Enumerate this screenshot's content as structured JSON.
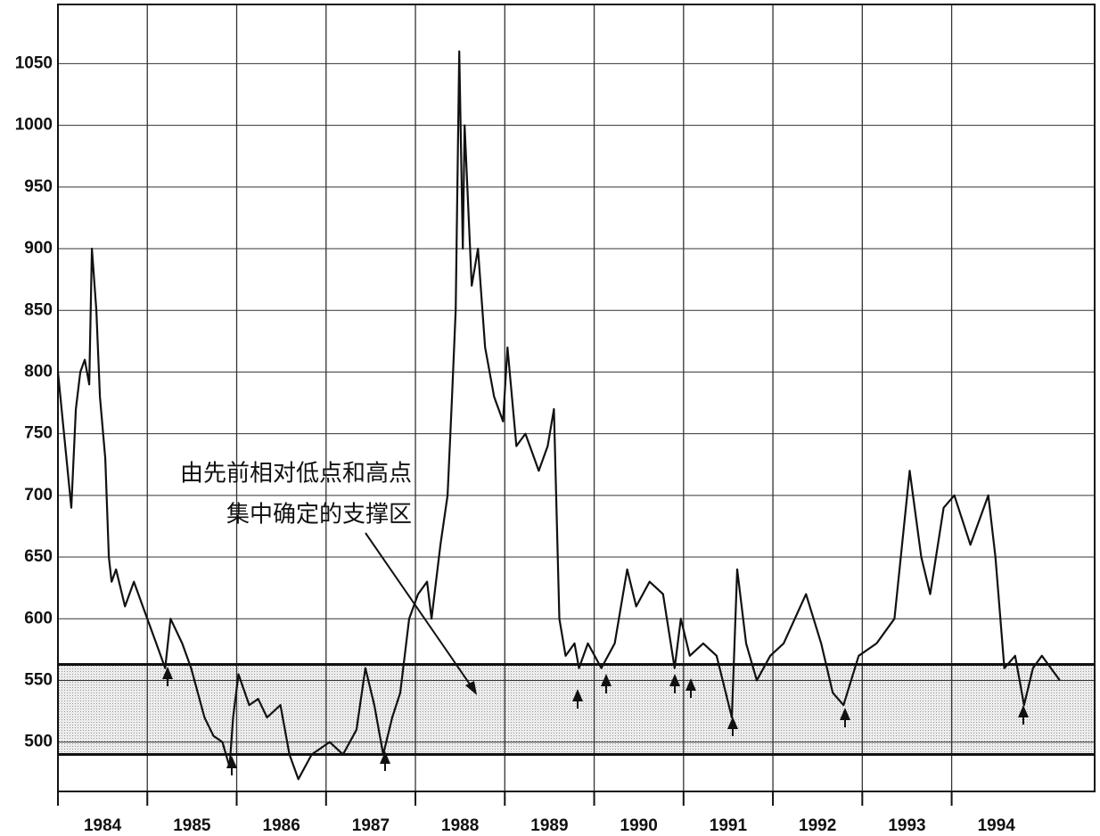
{
  "chart_data": {
    "type": "line",
    "annotation": [
      "由先前相对低点和高点",
      "集中确定的支撑区"
    ],
    "x": [
      1984,
      1984.15,
      1984.2,
      1984.25,
      1984.3,
      1984.35,
      1984.38,
      1984.43,
      1984.47,
      1984.53,
      1984.57,
      1984.6,
      1984.65,
      1984.75,
      1984.85,
      1984.95,
      1985.1,
      1985.2,
      1985.26,
      1985.39,
      1985.49,
      1985.64,
      1985.74,
      1985.84,
      1985.92,
      1985.96,
      1986.02,
      1986.14,
      1986.24,
      1986.34,
      1986.49,
      1986.59,
      1986.69,
      1986.84,
      1987.04,
      1987.19,
      1987.34,
      1987.44,
      1987.54,
      1987.64,
      1987.74,
      1987.83,
      1987.93,
      1988.03,
      1988.13,
      1988.18,
      1988.28,
      1988.36,
      1988.41,
      1988.45,
      1988.49,
      1988.53,
      1988.55,
      1988.63,
      1988.7,
      1988.78,
      1988.88,
      1988.98,
      1989.03,
      1989.13,
      1989.23,
      1989.38,
      1989.48,
      1989.55,
      1989.61,
      1989.68,
      1989.78,
      1989.83,
      1989.93,
      1990.08,
      1990.23,
      1990.37,
      1990.47,
      1990.62,
      1990.77,
      1990.9,
      1990.97,
      1991.07,
      1991.22,
      1991.37,
      1991.54,
      1991.6,
      1991.7,
      1991.82,
      1991.97,
      1992.12,
      1992.37,
      1992.54,
      1992.67,
      1992.79,
      1992.96,
      1993.16,
      1993.36,
      1993.53,
      1993.66,
      1993.76,
      1993.91,
      1994.03,
      1994.21,
      1994.41,
      1994.49,
      1994.59,
      1994.71,
      1994.81,
      1994.91,
      1995.01,
      1995.11,
      1995.21
    ],
    "series": [
      {
        "color": "#111111",
        "values": [
          800,
          690,
          770,
          800,
          810,
          790,
          900,
          850,
          780,
          730,
          650,
          630,
          640,
          610,
          630,
          610,
          580,
          560,
          600,
          580,
          560,
          520,
          505,
          500,
          480,
          520,
          555,
          530,
          535,
          520,
          530,
          490,
          470,
          490,
          500,
          490,
          510,
          560,
          530,
          490,
          520,
          540,
          600,
          620,
          630,
          600,
          660,
          700,
          780,
          850,
          1060,
          900,
          1000,
          870,
          900,
          820,
          780,
          760,
          820,
          740,
          750,
          720,
          740,
          770,
          600,
          570,
          580,
          560,
          580,
          560,
          580,
          640,
          610,
          630,
          620,
          560,
          600,
          570,
          580,
          570,
          520,
          640,
          580,
          550,
          570,
          580,
          620,
          580,
          540,
          530,
          570,
          580,
          600,
          720,
          650,
          620,
          690,
          700,
          660,
          700,
          650,
          560,
          570,
          530,
          560,
          570,
          560,
          550
        ]
      }
    ],
    "support_zone": [
      490,
      563
    ],
    "xlim": [
      1984,
      1995.6
    ],
    "xticks": [
      {
        "value": 1984,
        "label": "1984"
      },
      {
        "value": 1985,
        "label": "1985"
      },
      {
        "value": 1986,
        "label": "1986"
      },
      {
        "value": 1987,
        "label": "1987"
      },
      {
        "value": 1988,
        "label": "1988"
      },
      {
        "value": 1989,
        "label": "1989"
      },
      {
        "value": 1990,
        "label": "1990"
      },
      {
        "value": 1991,
        "label": "1991"
      },
      {
        "value": 1992,
        "label": "1992"
      },
      {
        "value": 1993,
        "label": "1993"
      },
      {
        "value": 1994,
        "label": "1994"
      }
    ],
    "ylim": [
      460,
      1098
    ],
    "yticks": [
      500,
      550,
      600,
      650,
      700,
      750,
      800,
      850,
      900,
      950,
      1000,
      1050
    ],
    "grid": true
  }
}
